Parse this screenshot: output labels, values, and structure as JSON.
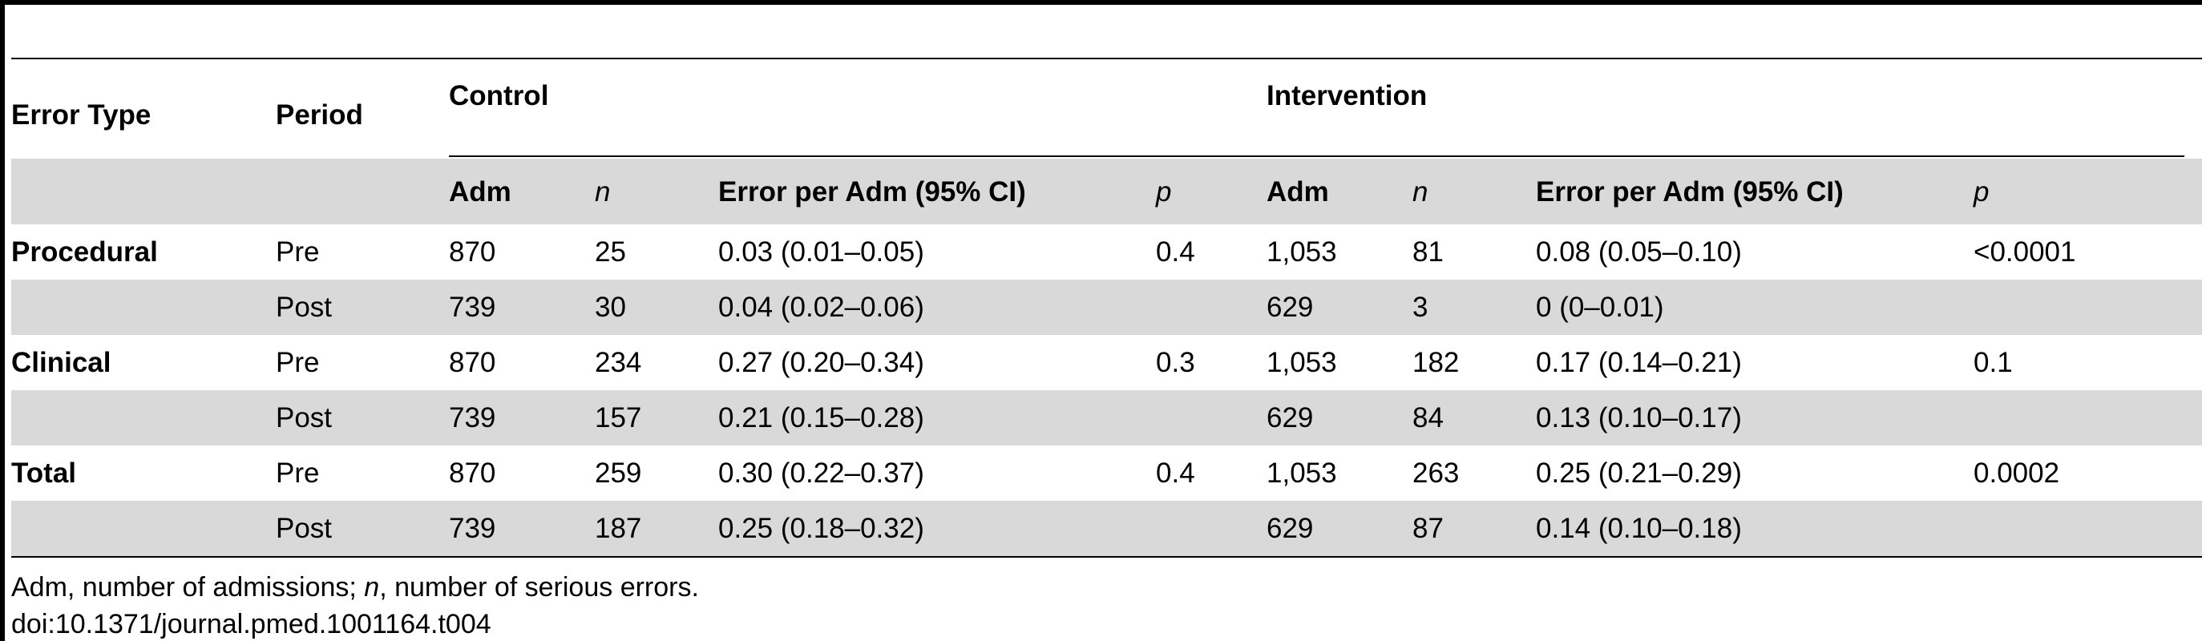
{
  "table": {
    "headers": {
      "error_type": "Error Type",
      "period": "Period",
      "control": "Control",
      "intervention": "Intervention",
      "adm": "Adm",
      "n": "n",
      "error_per_adm": "Error per Adm (95% CI)",
      "p": "p"
    },
    "rows": [
      {
        "type": "Procedural",
        "period": "Pre",
        "c_adm": "870",
        "c_n": "25",
        "c_err": "0.03 (0.01–0.05)",
        "c_p": "0.4",
        "i_adm": "1,053",
        "i_n": "81",
        "i_err": "0.08 (0.05–0.10)",
        "i_p": "<0.0001"
      },
      {
        "type": "",
        "period": "Post",
        "c_adm": "739",
        "c_n": "30",
        "c_err": "0.04 (0.02–0.06)",
        "c_p": "",
        "i_adm": "629",
        "i_n": "3",
        "i_err": "0 (0–0.01)",
        "i_p": ""
      },
      {
        "type": "Clinical",
        "period": "Pre",
        "c_adm": "870",
        "c_n": "234",
        "c_err": "0.27 (0.20–0.34)",
        "c_p": "0.3",
        "i_adm": "1,053",
        "i_n": "182",
        "i_err": "0.17 (0.14–0.21)",
        "i_p": "0.1"
      },
      {
        "type": "",
        "period": "Post",
        "c_adm": "739",
        "c_n": "157",
        "c_err": "0.21 (0.15–0.28)",
        "c_p": "",
        "i_adm": "629",
        "i_n": "84",
        "i_err": "0.13 (0.10–0.17)",
        "i_p": ""
      },
      {
        "type": "Total",
        "period": "Pre",
        "c_adm": "870",
        "c_n": "259",
        "c_err": "0.30 (0.22–0.37)",
        "c_p": "0.4",
        "i_adm": "1,053",
        "i_n": "263",
        "i_err": "0.25 (0.21–0.29)",
        "i_p": "0.0002"
      },
      {
        "type": "",
        "period": "Post",
        "c_adm": "739",
        "c_n": "187",
        "c_err": "0.25 (0.18–0.32)",
        "c_p": "",
        "i_adm": "629",
        "i_n": "87",
        "i_err": "0.14 (0.10–0.18)",
        "i_p": ""
      }
    ]
  },
  "footnote": {
    "part1": "Adm, number of admissions; ",
    "n_italic": "n",
    "part2": ", number of serious errors."
  },
  "doi": "doi:10.1371/journal.pmed.1001164.t004"
}
